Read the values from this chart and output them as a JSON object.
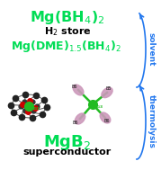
{
  "bg_color": "#ffffff",
  "title_top": "Mg(BH$_4$)$_2$",
  "title_top_color": "#00dd55",
  "subtitle_top": "H$_2$ store",
  "subtitle_top_color": "#000000",
  "title_mid": "Mg(DME)$_{1.5}$(BH$_4$)$_2$",
  "title_mid_color": "#00dd55",
  "title_bot": "MgB$_2$",
  "title_bot_color": "#00dd55",
  "subtitle_bot": "superconductor",
  "subtitle_bot_color": "#000000",
  "arrow_color": "#2277ee",
  "label_solvent": "solvent",
  "label_thermolysis": "thermolysis",
  "label_color": "#2277ee",
  "fig_width": 1.79,
  "fig_height": 1.89,
  "dpi": 100
}
